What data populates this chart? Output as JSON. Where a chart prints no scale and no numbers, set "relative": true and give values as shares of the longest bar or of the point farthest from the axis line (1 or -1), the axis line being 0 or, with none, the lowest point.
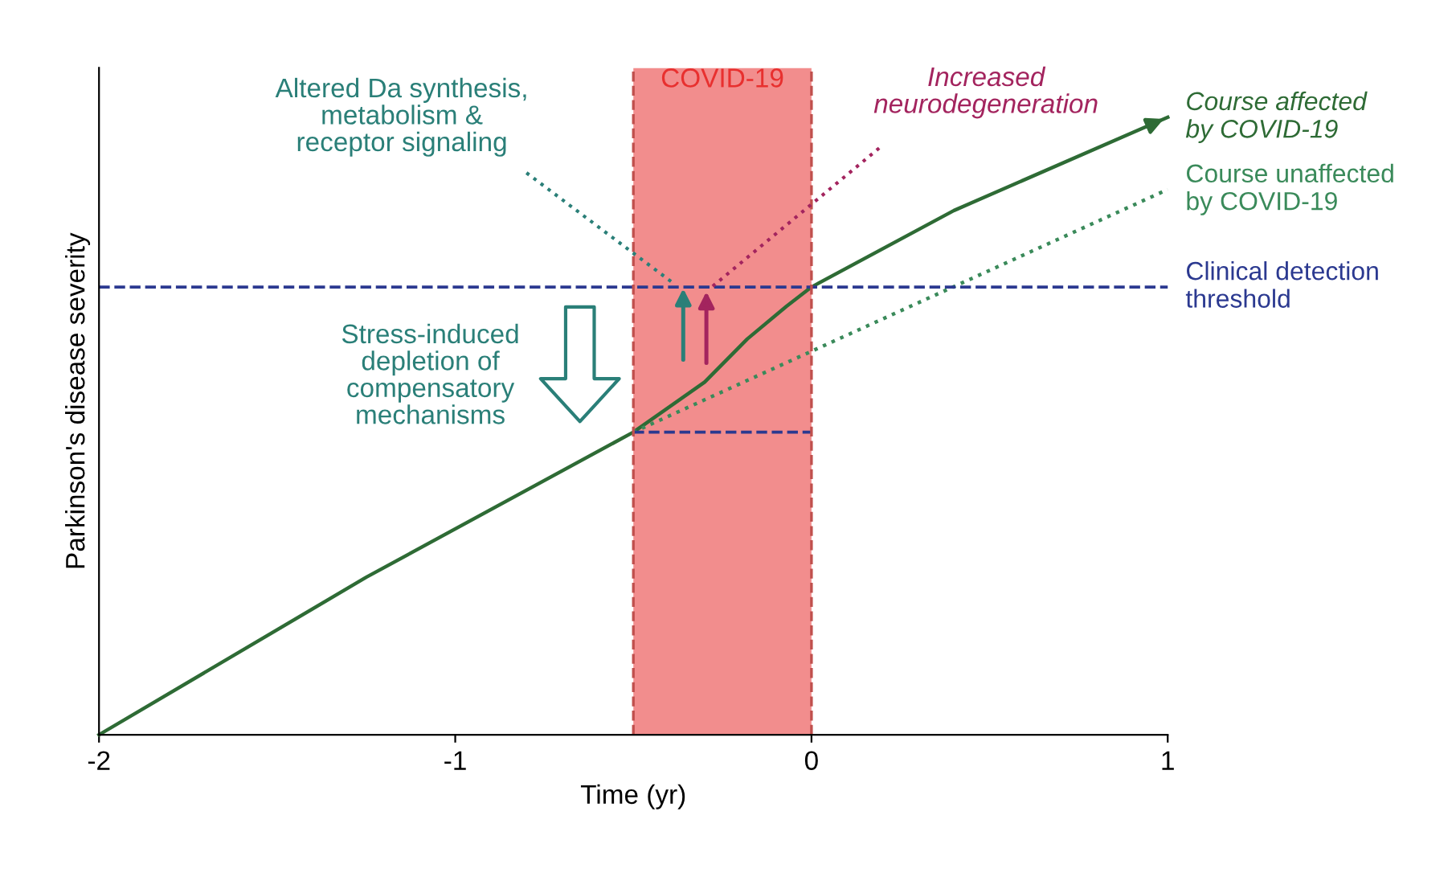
{
  "chart_data": {
    "type": "line",
    "relative": true,
    "xlabel": "Time (yr)",
    "ylabel": "Parkinson's disease severity",
    "xlim": [
      -2,
      1
    ],
    "xticks": [
      -2,
      -1,
      0,
      1
    ],
    "grid": false,
    "legend": "right",
    "series": [
      {
        "name": "Course affected\nby COVID-19",
        "color": "#2e6b35",
        "line_style": "solid",
        "x": [
          -2,
          -1.25,
          -0.5,
          -0.3,
          -0.18,
          -0.07,
          0,
          0.4,
          1
        ],
        "values": [
          0,
          0.255,
          0.49,
          0.571,
          0.641,
          0.694,
          0.725,
          0.849,
          1
        ]
      },
      {
        "name": "Course unaffected\nby COVID-19",
        "color": "#3a8a5a",
        "line_style": "dotted",
        "x": [
          -0.5,
          1
        ],
        "values": [
          0.49,
          0.883
        ]
      },
      {
        "color": "#2b3990",
        "line_style": "dashed",
        "x": [
          -0.5,
          0
        ],
        "values": [
          0.49,
          0.49
        ]
      }
    ],
    "ref_lines": [
      {
        "axis": "y",
        "value": 0.725,
        "label": "Clinical detection threshold",
        "color": "#2b3990",
        "line_style": "dashed"
      },
      {
        "axis": "x",
        "value": -0.5,
        "color": "#c0504d",
        "line_style": "dashed"
      },
      {
        "axis": "x",
        "value": 0,
        "color": "#c0504d",
        "line_style": "dashed"
      }
    ],
    "bands": [
      {
        "axis": "x",
        "from": -0.5,
        "to": 0,
        "label": "COVID-19",
        "color": "#e8302f"
      }
    ],
    "annotations": [
      {
        "text": "Altered Da synthesis,\nmetabolism &\nreceptor signaling",
        "x": -0.385,
        "y": 0.73
      },
      {
        "text": "Increased\nneurodegeneration",
        "x": -0.28,
        "y": 0.725
      },
      "Stress-induced\ndepletion of\ncompensatory\nmechanisms"
    ]
  }
}
